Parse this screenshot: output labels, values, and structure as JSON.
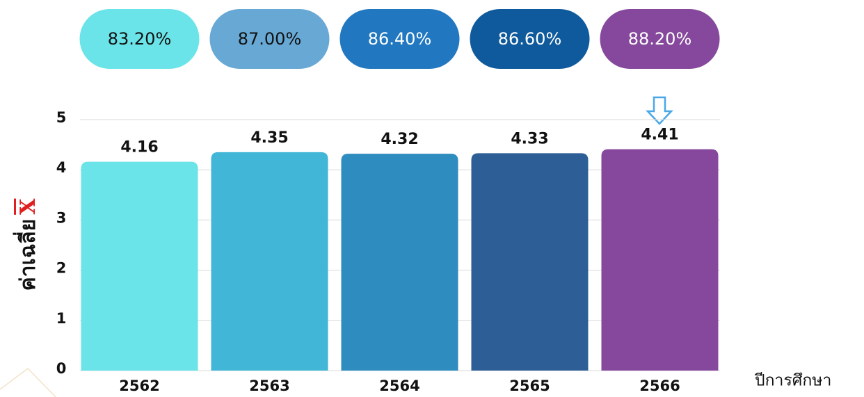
{
  "chart_data": {
    "type": "bar",
    "categories": [
      "2562",
      "2563",
      "2564",
      "2565",
      "2566"
    ],
    "values": [
      4.16,
      4.35,
      4.32,
      4.33,
      4.41
    ],
    "colors": [
      "#6ae4e8",
      "#42b6d6",
      "#2e8cbf",
      "#2d5e96",
      "#85489c"
    ],
    "ylim": [
      0,
      5
    ],
    "yticks": [
      0,
      1,
      2,
      3,
      4,
      5
    ],
    "grid": true,
    "ylabel": "ค่าเฉลี่ย",
    "ylabel_symbol": "X",
    "xlabel": "ปีการศึกษา",
    "badges": [
      {
        "value": 83.2,
        "label": "83.20%",
        "color": "#6ae4e8",
        "text_color": "#111111"
      },
      {
        "value": 87.0,
        "label": "87.00%",
        "color": "#68a8d4",
        "text_color": "#111111"
      },
      {
        "value": 86.4,
        "label": "86.40%",
        "color": "#2178c0",
        "text_color": "#ffffff"
      },
      {
        "value": 86.6,
        "label": "86.60%",
        "color": "#0f5a9c",
        "text_color": "#ffffff"
      },
      {
        "value": 88.2,
        "label": "88.20%",
        "color": "#85489c",
        "text_color": "#ffffff"
      }
    ]
  }
}
